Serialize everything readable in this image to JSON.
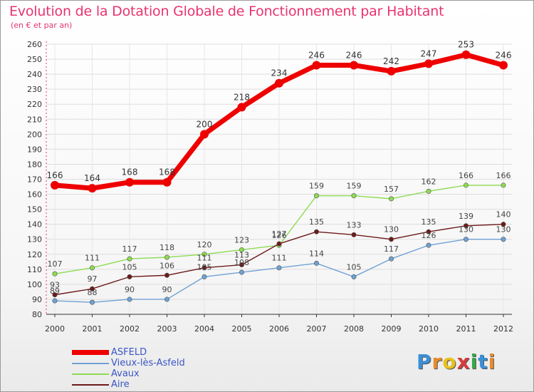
{
  "title": "Evolution de la Dotation Globale de Fonctionnement par Habitant",
  "subtitle": "(en € et par an)",
  "logo": {
    "text": "Proxiti",
    "letters": [
      "P",
      "r",
      "o",
      "x",
      "i",
      "t",
      "i"
    ],
    "colors": [
      "#3a8fd8",
      "#e88b2a",
      "#e8c21a",
      "#d83a3a",
      "#3aa84a",
      "#3a8fd8",
      "#e88b2a"
    ]
  },
  "colors": {
    "title": "#e8336e",
    "legend_text": "#3a55c4",
    "axis": "#333333",
    "grid": "#e8336e"
  },
  "chart_data": {
    "type": "line",
    "title": "Evolution de la Dotation Globale de Fonctionnement par Habitant",
    "subtitle": "(en € et par an)",
    "xlabel": "",
    "ylabel": "",
    "x": [
      "2000",
      "2001",
      "2002",
      "2003",
      "2004",
      "2005",
      "2006",
      "2007",
      "2008",
      "2009",
      "2010",
      "2011",
      "2012"
    ],
    "ylim": [
      80,
      260
    ],
    "yticks": [
      80,
      90,
      100,
      110,
      120,
      130,
      140,
      150,
      160,
      170,
      180,
      190,
      200,
      210,
      220,
      230,
      240,
      250,
      260
    ],
    "legend_position": "bottom-left",
    "series": [
      {
        "name": "ASFELD",
        "color": "#ee0000",
        "values": [
          166,
          164,
          168,
          168,
          200,
          218,
          234,
          246,
          246,
          242,
          247,
          253,
          246
        ]
      },
      {
        "name": "Vieux-lès-Asfeld",
        "color": "#6fa1d4",
        "values": [
          89,
          88,
          90,
          90,
          105,
          108,
          111,
          114,
          105,
          117,
          126,
          130,
          130
        ]
      },
      {
        "name": "Avaux",
        "color": "#8edc52",
        "values": [
          107,
          111,
          117,
          118,
          120,
          123,
          126,
          159,
          159,
          157,
          162,
          166,
          166
        ]
      },
      {
        "name": "Aire",
        "color": "#6e1a1a",
        "values": [
          93,
          97,
          105,
          106,
          111,
          113,
          127,
          135,
          133,
          130,
          135,
          139,
          140
        ]
      }
    ]
  }
}
